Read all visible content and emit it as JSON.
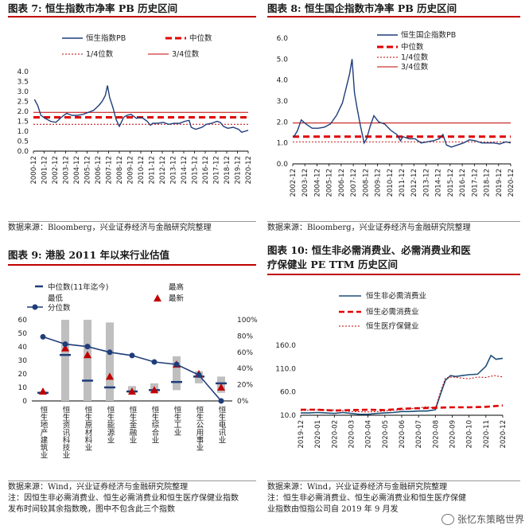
{
  "panels": [
    {
      "title": "图表 7:  恒生指数市净率 PB 历史区间",
      "source": "数据来源：Bloomberg，兴业证券经济与金融研究院整理"
    },
    {
      "title": "图表 8:  恒生国企指数市净率 PB 历史区间",
      "source": "数据来源：Bloomberg，兴业证券经济与金融研究院整理"
    },
    {
      "title": "图表 9:  港股 2011 年以来行业估值",
      "source": "数据来源：Wind，兴业证券经济与金融研究院整理",
      "note1": "注：因恒生非必需消费业、恒生必需消费业和恒生医疗保健业指数",
      "note2": "发布时间较其余指数晚，图中不包含此三个指数"
    },
    {
      "title": "图表 10:  恒生非必需消费业、必需消费业和医",
      "title2": "疗保健业 PE TTM 历史区间",
      "source": "数据来源：Wind，兴业证券经济与金融研究院整理",
      "note1": "注：恒生非必需消费业、恒生必需消费业和恒生医疗保健",
      "note2": "业指数由恒指公司自 2019 年 9 月发"
    }
  ],
  "watermark": "张忆东策略世界",
  "chart_data": [
    {
      "type": "line",
      "title": "恒生指数PB",
      "legend": [
        "恒生指数PB",
        "中位数",
        "1/4位数",
        "3/4位数"
      ],
      "x_ticks": [
        "2000-12",
        "2001-12",
        "2002-12",
        "2003-12",
        "2004-12",
        "2005-12",
        "2006-12",
        "2007-12",
        "2008-12",
        "2009-12",
        "2010-12",
        "2011-12",
        "2012-12",
        "2013-12",
        "2014-12",
        "2015-12",
        "2016-12",
        "2017-12",
        "2018-12",
        "2019-12",
        "2020-12"
      ],
      "y_ticks": [
        "0.0",
        "0.5",
        "1.0",
        "1.5",
        "2.0",
        "2.5",
        "3.0",
        "3.5",
        "4.0"
      ],
      "ylim": [
        0,
        4
      ],
      "x": [
        2001.0,
        2001.3,
        2001.6,
        2002.0,
        2002.5,
        2003.0,
        2003.3,
        2003.6,
        2004.0,
        2004.5,
        2005.0,
        2005.5,
        2006.0,
        2006.5,
        2007.0,
        2007.3,
        2007.6,
        2007.8,
        2008.0,
        2008.3,
        2008.6,
        2008.9,
        2009.0,
        2009.3,
        2009.6,
        2010.0,
        2010.5,
        2011.0,
        2011.5,
        2011.8,
        2012.0,
        2012.5,
        2013.0,
        2013.5,
        2014.0,
        2014.5,
        2015.0,
        2015.4,
        2015.6,
        2016.0,
        2016.3,
        2016.6,
        2017.0,
        2017.5,
        2018.0,
        2018.3,
        2018.6,
        2019.0,
        2019.5,
        2020.0,
        2020.3,
        2020.6,
        2020.9
      ],
      "values": [
        2.6,
        2.3,
        1.8,
        1.65,
        1.5,
        1.45,
        1.6,
        1.75,
        1.9,
        1.8,
        1.8,
        1.85,
        1.95,
        2.05,
        2.3,
        2.5,
        2.8,
        3.3,
        2.7,
        2.2,
        1.6,
        1.25,
        1.35,
        1.7,
        1.8,
        1.85,
        1.65,
        1.7,
        1.5,
        1.3,
        1.4,
        1.4,
        1.45,
        1.35,
        1.4,
        1.4,
        1.5,
        1.55,
        1.2,
        1.1,
        1.15,
        1.2,
        1.35,
        1.4,
        1.5,
        1.45,
        1.25,
        1.15,
        1.2,
        1.1,
        0.95,
        1.0,
        1.05
      ],
      "median": 1.7,
      "q1": 1.35,
      "q3": 1.95
    },
    {
      "type": "line",
      "title": "恒生国企指数PB",
      "legend": [
        "恒生国企指数PB",
        "中位数",
        "1/4位数",
        "3/4位数"
      ],
      "x_ticks": [
        "2002-12",
        "2003-12",
        "2004-12",
        "2005-12",
        "2006-12",
        "2007-12",
        "2008-12",
        "2009-12",
        "2010-12",
        "2011-12",
        "2012-12",
        "2013-12",
        "2014-12",
        "2015-12",
        "2016-12",
        "2017-12",
        "2018-12",
        "2019-12",
        "2020-12"
      ],
      "y_ticks": [
        "0.0",
        "1.0",
        "2.0",
        "3.0",
        "4.0",
        "5.0",
        "6.0"
      ],
      "ylim": [
        0,
        6
      ],
      "x": [
        2003.0,
        2003.3,
        2003.6,
        2004.0,
        2004.5,
        2005.0,
        2005.5,
        2006.0,
        2006.5,
        2007.0,
        2007.3,
        2007.6,
        2007.8,
        2008.0,
        2008.2,
        2008.5,
        2008.8,
        2009.0,
        2009.3,
        2009.6,
        2010.0,
        2010.5,
        2011.0,
        2011.5,
        2011.8,
        2012.0,
        2012.5,
        2013.0,
        2013.5,
        2014.0,
        2014.5,
        2015.0,
        2015.3,
        2015.6,
        2016.0,
        2016.5,
        2017.0,
        2017.5,
        2018.0,
        2018.5,
        2019.0,
        2019.5,
        2020.0,
        2020.5,
        2020.9
      ],
      "values": [
        1.3,
        1.6,
        2.1,
        1.9,
        1.7,
        1.7,
        1.75,
        1.9,
        2.3,
        2.9,
        3.6,
        4.3,
        5.0,
        3.4,
        2.7,
        1.8,
        1.0,
        1.2,
        1.8,
        2.3,
        2.0,
        1.9,
        1.6,
        1.4,
        1.1,
        1.3,
        1.2,
        1.2,
        1.0,
        1.05,
        1.1,
        1.2,
        1.4,
        0.9,
        0.8,
        0.9,
        1.0,
        1.15,
        1.1,
        1.0,
        1.0,
        1.0,
        0.95,
        1.05,
        1.0
      ],
      "median": 1.3,
      "q1": 1.05,
      "q3": 1.95
    },
    {
      "type": "bar",
      "title": "港股 2011 年以来行业估值",
      "legend": [
        "中位数(11年迄今)",
        "最高",
        "最低",
        "最新",
        "分位数"
      ],
      "categories": [
        "恒生地产建筑业",
        "恒生资讯科技业",
        "恒生原材料业",
        "恒生能源业",
        "恒生金融业",
        "恒生综合业",
        "恒生工业",
        "恒生公用事业",
        "恒生电讯业"
      ],
      "y_left_ticks": [
        "0",
        "10",
        "20",
        "30",
        "40",
        "50",
        "60"
      ],
      "y_right_ticks": [
        "0%",
        "20%",
        "40%",
        "60%",
        "80%",
        "100%"
      ],
      "ylim_left": [
        0,
        60
      ],
      "ylim_right": [
        0,
        100
      ],
      "high": [
        7,
        60,
        60,
        58,
        11,
        13,
        33,
        22,
        18
      ],
      "low": [
        5,
        0,
        0,
        0,
        6,
        6,
        8,
        13,
        6
      ],
      "median": [
        6,
        34,
        15,
        10,
        7,
        8,
        14,
        18,
        13
      ],
      "latest": [
        7,
        39,
        34,
        18,
        7,
        8,
        27,
        20,
        10
      ],
      "percentile": [
        79,
        70,
        67,
        60,
        56,
        48,
        45,
        32,
        0
      ]
    },
    {
      "type": "line",
      "title": "恒生非必需/必需/医疗保健 PE TTM",
      "legend": [
        "恒生非必需消费业",
        "恒生必需消费业",
        "恒生医疗保健业"
      ],
      "x_ticks": [
        "2019-12",
        "2020-01",
        "2020-02",
        "2020-03",
        "2020-04",
        "2020-05",
        "2020-06",
        "2020-07",
        "2020-08",
        "2020-09",
        "2020-10",
        "2020-11",
        "2020-12"
      ],
      "y_ticks": [
        "10.0",
        "60.0",
        "110.0",
        "160.0"
      ],
      "ylim": [
        10,
        160
      ],
      "series": [
        {
          "name": "恒生非必需消费业",
          "x": [
            0,
            0.5,
            1,
            1.5,
            2,
            2.5,
            3,
            3.5,
            4,
            4.5,
            5,
            5.5,
            6,
            6.5,
            7,
            7.5,
            8,
            8.3,
            8.6,
            8.9,
            9.2,
            9.6,
            10,
            10.5,
            11,
            11.3,
            11.6,
            12
          ],
          "values": [
            15,
            15,
            16,
            15,
            14,
            16,
            14,
            12,
            12,
            14,
            15,
            16,
            18,
            18,
            19,
            19,
            22,
            55,
            85,
            95,
            93,
            95,
            97,
            98,
            115,
            138,
            130,
            132
          ]
        },
        {
          "name": "恒生必需消费业",
          "x": [
            0,
            1,
            2,
            3,
            4,
            5,
            6,
            7,
            8,
            9,
            10,
            11,
            12
          ],
          "values": [
            22,
            22,
            20,
            21,
            22,
            21,
            24,
            25,
            26,
            27,
            27,
            28,
            31
          ]
        },
        {
          "name": "恒生医疗保健业",
          "x": [
            0,
            1,
            2,
            3,
            4,
            5,
            6,
            7,
            7.5,
            8,
            8.3,
            8.6,
            9,
            9.5,
            10,
            10.5,
            11,
            11.5,
            12
          ],
          "values": [
            20,
            22,
            21,
            18,
            17,
            19,
            22,
            26,
            28,
            25,
            60,
            90,
            92,
            90,
            88,
            92,
            91,
            95,
            92
          ]
        }
      ]
    }
  ]
}
